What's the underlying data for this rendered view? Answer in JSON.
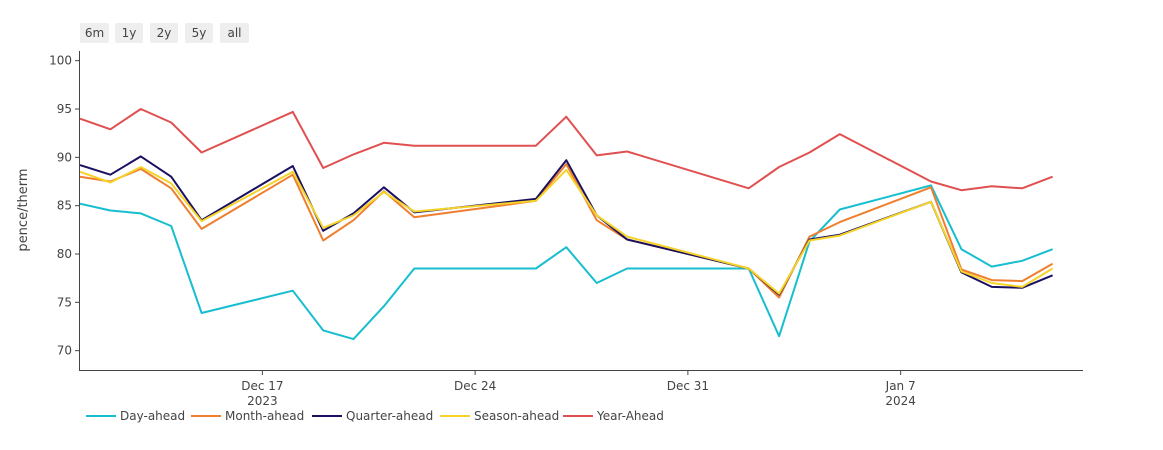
{
  "range_selector": [
    "6m",
    "1y",
    "2y",
    "5y",
    "all"
  ],
  "chart_data": {
    "type": "line",
    "ylabel": "pence/therm",
    "xlabel": "",
    "ylim": [
      68,
      101
    ],
    "yticks": [
      70,
      75,
      80,
      85,
      90,
      95,
      100
    ],
    "xlim": [
      "2023-12-11",
      "2024-01-13"
    ],
    "xticks": [
      {
        "date": "2023-12-17",
        "label": "Dec 17",
        "sublabel": "2023"
      },
      {
        "date": "2023-12-24",
        "label": "Dec 24",
        "sublabel": ""
      },
      {
        "date": "2023-12-31",
        "label": "Dec 31",
        "sublabel": ""
      },
      {
        "date": "2024-01-07",
        "label": "Jan 7",
        "sublabel": "2024"
      }
    ],
    "x": [
      "2023-12-11",
      "2023-12-12",
      "2023-12-13",
      "2023-12-14",
      "2023-12-15",
      "2023-12-18",
      "2023-12-19",
      "2023-12-20",
      "2023-12-21",
      "2023-12-22",
      "2023-12-26",
      "2023-12-27",
      "2023-12-28",
      "2023-12-29",
      "2024-01-02",
      "2024-01-03",
      "2024-01-04",
      "2024-01-05",
      "2024-01-08",
      "2024-01-09",
      "2024-01-10",
      "2024-01-11",
      "2024-01-12"
    ],
    "series": [
      {
        "name": "Day-ahead",
        "color": "#17becf",
        "values": [
          85.2,
          84.5,
          84.2,
          82.9,
          73.9,
          76.2,
          72.1,
          71.2,
          74.6,
          78.5,
          78.5,
          80.7,
          77.0,
          78.5,
          78.5,
          71.5,
          81.3,
          84.6,
          87.1,
          80.5,
          78.7,
          79.3,
          80.5
        ]
      },
      {
        "name": "Month-ahead",
        "color": "#ef7f2e",
        "values": [
          88.0,
          87.5,
          88.8,
          86.8,
          82.6,
          88.2,
          81.4,
          83.5,
          86.5,
          83.8,
          85.5,
          89.3,
          83.5,
          81.5,
          78.5,
          75.5,
          81.8,
          83.3,
          86.9,
          78.4,
          77.3,
          77.2,
          79.0
        ]
      },
      {
        "name": "Quarter-ahead",
        "color": "#1a1060",
        "values": [
          89.2,
          88.2,
          90.1,
          88.0,
          83.5,
          89.1,
          82.4,
          84.2,
          86.9,
          84.3,
          85.7,
          89.7,
          84.0,
          81.5,
          78.5,
          75.8,
          81.5,
          82.0,
          85.4,
          78.1,
          76.6,
          76.5,
          77.8
        ]
      },
      {
        "name": "Season-ahead",
        "color": "#f5d328",
        "values": [
          88.5,
          87.4,
          89.0,
          87.3,
          83.4,
          88.5,
          82.7,
          84.0,
          86.4,
          84.4,
          85.5,
          88.7,
          84.0,
          81.8,
          78.5,
          75.9,
          81.4,
          81.9,
          85.4,
          78.2,
          77.0,
          76.6,
          78.5
        ]
      },
      {
        "name": "Year-Ahead",
        "color": "#e05050",
        "values": [
          94.0,
          92.9,
          95.0,
          93.6,
          90.5,
          94.7,
          88.9,
          90.3,
          91.5,
          91.2,
          91.2,
          94.2,
          90.2,
          90.6,
          86.8,
          89.0,
          90.5,
          92.4,
          87.5,
          86.6,
          87.0,
          86.8,
          88.0
        ]
      }
    ],
    "legend_position": "bottom-left",
    "grid": false
  }
}
